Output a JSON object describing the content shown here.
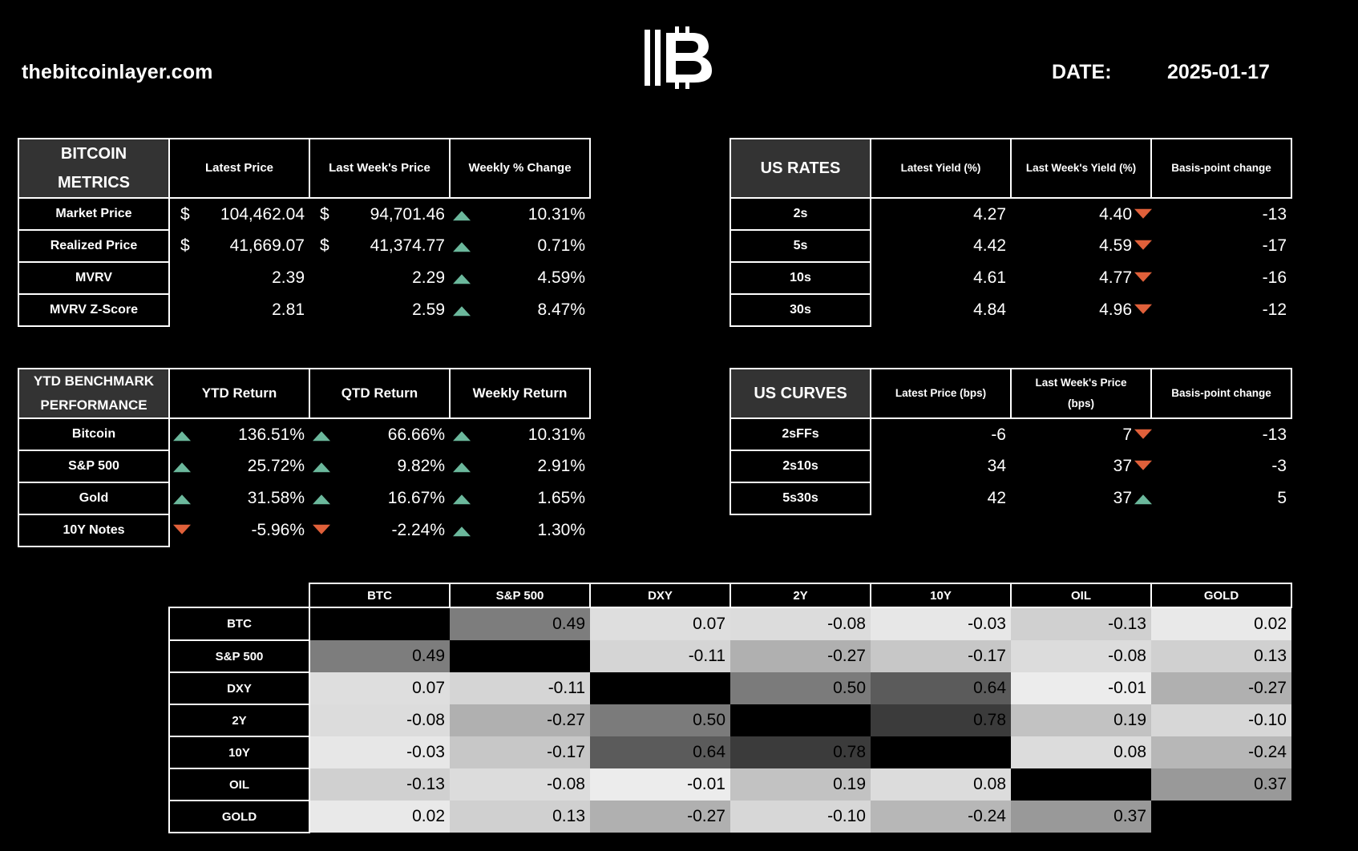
{
  "header": {
    "site": "thebitcoinlayer.com",
    "date_label": "DATE:",
    "date_value": "2025-01-17",
    "logo_icon": "bitcoin-layer-logo-icon"
  },
  "colors": {
    "up": "#6bb89c",
    "down": "#e0603a",
    "title_bg": "#333333",
    "background": "#000000"
  },
  "bitcoin_metrics": {
    "title_line1": "BITCOIN",
    "title_line2": "METRICS",
    "columns": [
      "Latest Price",
      "Last Week's Price",
      "Weekly % Change"
    ],
    "rows": [
      {
        "label": "Market Price",
        "latest": "104,462.04",
        "last_week": "94,701.46",
        "change": "10.31%",
        "latest_currency": "$",
        "last_week_currency": "$",
        "direction": "up"
      },
      {
        "label": "Realized Price",
        "latest": "41,669.07",
        "last_week": "41,374.77",
        "change": "0.71%",
        "latest_currency": "$",
        "last_week_currency": "$",
        "direction": "up"
      },
      {
        "label": "MVRV",
        "latest": "2.39",
        "last_week": "2.29",
        "change": "4.59%",
        "direction": "up"
      },
      {
        "label": "MVRV Z-Score",
        "latest": "2.81",
        "last_week": "2.59",
        "change": "8.47%",
        "direction": "up"
      }
    ]
  },
  "us_rates": {
    "title": "US RATES",
    "columns": [
      "Latest Yield (%)",
      "Last Week's Yield (%)",
      "Basis-point change"
    ],
    "rows": [
      {
        "label": "2s",
        "latest": "4.27",
        "last_week": "4.40",
        "change": "-13",
        "direction": "down"
      },
      {
        "label": "5s",
        "latest": "4.42",
        "last_week": "4.59",
        "change": "-17",
        "direction": "down"
      },
      {
        "label": "10s",
        "latest": "4.61",
        "last_week": "4.77",
        "change": "-16",
        "direction": "down"
      },
      {
        "label": "30s",
        "latest": "4.84",
        "last_week": "4.96",
        "change": "-12",
        "direction": "down"
      }
    ]
  },
  "ytd_benchmark": {
    "title_line1": "YTD BENCHMARK",
    "title_line2": "PERFORMANCE",
    "columns": [
      "YTD Return",
      "QTD Return",
      "Weekly Return"
    ],
    "rows": [
      {
        "label": "Bitcoin",
        "ytd": "136.51%",
        "qtd": "66.66%",
        "weekly": "10.31%",
        "ytd_dir": "up",
        "qtd_dir": "up",
        "weekly_dir": "up"
      },
      {
        "label": "S&P 500",
        "ytd": "25.72%",
        "qtd": "9.82%",
        "weekly": "2.91%",
        "ytd_dir": "up",
        "qtd_dir": "up",
        "weekly_dir": "up"
      },
      {
        "label": "Gold",
        "ytd": "31.58%",
        "qtd": "16.67%",
        "weekly": "1.65%",
        "ytd_dir": "up",
        "qtd_dir": "up",
        "weekly_dir": "up"
      },
      {
        "label": "10Y Notes",
        "ytd": "-5.96%",
        "qtd": "-2.24%",
        "weekly": "1.30%",
        "ytd_dir": "down",
        "qtd_dir": "down",
        "weekly_dir": "up"
      }
    ]
  },
  "us_curves": {
    "title": "US CURVES",
    "col1": "Latest Price (bps)",
    "col2_line1": "Last Week's Price",
    "col2_line2": "(bps)",
    "col3": "Basis-point change",
    "rows": [
      {
        "label": "2sFFs",
        "latest": "-6",
        "last_week": "7",
        "change": "-13",
        "direction": "down"
      },
      {
        "label": "2s10s",
        "latest": "34",
        "last_week": "37",
        "change": "-3",
        "direction": "down"
      },
      {
        "label": "5s30s",
        "latest": "42",
        "last_week": "37",
        "change": "5",
        "direction": "up"
      }
    ]
  },
  "correlation": {
    "assets": [
      "BTC",
      "S&P 500",
      "DXY",
      "2Y",
      "10Y",
      "OIL",
      "GOLD"
    ],
    "matrix": [
      [
        null,
        "0.49",
        "0.07",
        "-0.08",
        "-0.03",
        "-0.13",
        "0.02"
      ],
      [
        "0.49",
        null,
        "-0.11",
        "-0.27",
        "-0.17",
        "-0.08",
        "0.13"
      ],
      [
        "0.07",
        "-0.11",
        null,
        "0.50",
        "0.64",
        "-0.01",
        "-0.27"
      ],
      [
        "-0.08",
        "-0.27",
        "0.50",
        null,
        "0.78",
        "0.19",
        "-0.10"
      ],
      [
        "-0.03",
        "-0.17",
        "0.64",
        "0.78",
        null,
        "0.08",
        "-0.24"
      ],
      [
        "-0.13",
        "-0.08",
        "-0.01",
        "0.19",
        "0.08",
        null,
        "0.37"
      ],
      [
        "0.02",
        "0.13",
        "-0.27",
        "-0.10",
        "-0.24",
        "0.37",
        null
      ]
    ]
  }
}
